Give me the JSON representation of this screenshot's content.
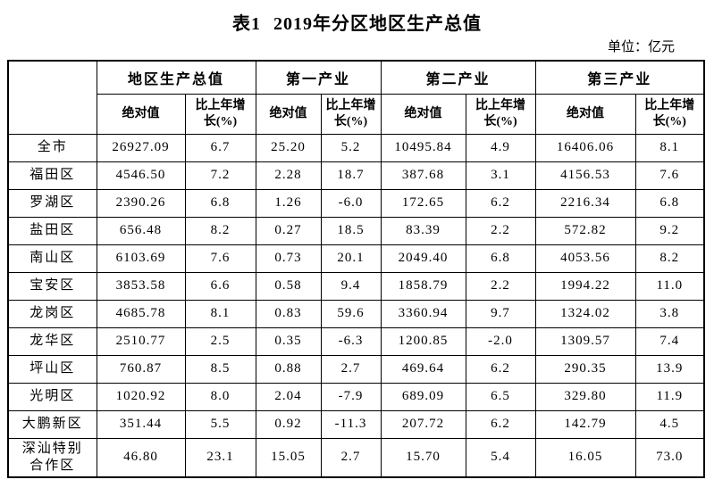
{
  "title": {
    "prefix": "表1",
    "main": "2019年分区地区生产总值"
  },
  "unit_label": "单位：亿元",
  "table": {
    "corner_label": "",
    "groups": [
      {
        "label": "地区生产总值"
      },
      {
        "label": "第一产业"
      },
      {
        "label": "第二产业"
      },
      {
        "label": "第三产业"
      }
    ],
    "sub_headers": {
      "absolute": "绝对值",
      "growth": "比上年增\n长(%)"
    },
    "rows": [
      {
        "label": "全市",
        "values": [
          "26927.09",
          "6.7",
          "25.20",
          "5.2",
          "10495.84",
          "4.9",
          "16406.06",
          "8.1"
        ]
      },
      {
        "label": "福田区",
        "values": [
          "4546.50",
          "7.2",
          "2.28",
          "18.7",
          "387.68",
          "3.1",
          "4156.53",
          "7.6"
        ]
      },
      {
        "label": "罗湖区",
        "values": [
          "2390.26",
          "6.8",
          "1.26",
          "-6.0",
          "172.65",
          "6.2",
          "2216.34",
          "6.8"
        ]
      },
      {
        "label": "盐田区",
        "values": [
          "656.48",
          "8.2",
          "0.27",
          "18.5",
          "83.39",
          "2.2",
          "572.82",
          "9.2"
        ]
      },
      {
        "label": "南山区",
        "values": [
          "6103.69",
          "7.6",
          "0.73",
          "20.1",
          "2049.40",
          "6.8",
          "4053.56",
          "8.2"
        ]
      },
      {
        "label": "宝安区",
        "values": [
          "3853.58",
          "6.6",
          "0.58",
          "9.4",
          "1858.79",
          "2.2",
          "1994.22",
          "11.0"
        ]
      },
      {
        "label": "龙岗区",
        "values": [
          "4685.78",
          "8.1",
          "0.83",
          "59.6",
          "3360.94",
          "9.7",
          "1324.02",
          "3.8"
        ]
      },
      {
        "label": "龙华区",
        "values": [
          "2510.77",
          "2.5",
          "0.35",
          "-6.3",
          "1200.85",
          "-2.0",
          "1309.57",
          "7.4"
        ]
      },
      {
        "label": "坪山区",
        "values": [
          "760.87",
          "8.5",
          "0.88",
          "2.7",
          "469.64",
          "6.2",
          "290.35",
          "13.9"
        ]
      },
      {
        "label": "光明区",
        "values": [
          "1020.92",
          "8.0",
          "2.04",
          "-7.9",
          "689.09",
          "6.5",
          "329.80",
          "11.9"
        ]
      },
      {
        "label": "大鹏新区",
        "values": [
          "351.44",
          "5.5",
          "0.92",
          "-11.3",
          "207.72",
          "6.2",
          "142.79",
          "4.5"
        ]
      },
      {
        "label": "深汕特别\n合作区",
        "values": [
          "46.80",
          "23.1",
          "15.05",
          "2.7",
          "15.70",
          "5.4",
          "16.05",
          "73.0"
        ]
      }
    ]
  }
}
